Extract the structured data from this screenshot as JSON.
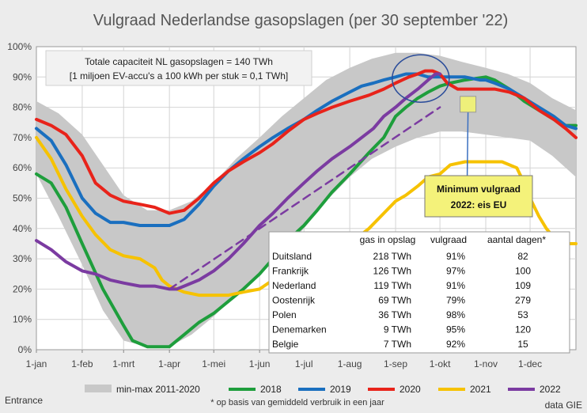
{
  "chart_data": {
    "type": "line",
    "title": "Vulgraad Nederlandse gasopslagen (per 30 september '22)",
    "x_tick_labels": [
      "1-jan",
      "1-feb",
      "1-mrt",
      "1-apr",
      "1-mei",
      "1-jun",
      "1-jul",
      "1-aug",
      "1-sep",
      "1-okt",
      "1-nov",
      "1-dec"
    ],
    "x_tick_days": [
      0,
      31,
      59,
      90,
      120,
      151,
      181,
      212,
      243,
      273,
      304,
      334
    ],
    "x_range_days": [
      0,
      365
    ],
    "y_tick_labels": [
      "0%",
      "10%",
      "20%",
      "30%",
      "40%",
      "50%",
      "60%",
      "70%",
      "80%",
      "90%",
      "100%"
    ],
    "ylim": [
      0,
      100
    ],
    "grid": true,
    "legend_position": "bottom",
    "band": {
      "name": "min-max 2011-2020",
      "color": "#c8c8c8",
      "x": [
        0,
        15,
        31,
        45,
        59,
        75,
        90,
        105,
        120,
        135,
        151,
        166,
        181,
        196,
        212,
        227,
        243,
        258,
        273,
        288,
        304,
        319,
        334,
        349,
        365
      ],
      "min": [
        58,
        44,
        28,
        13,
        3,
        1,
        1,
        5,
        11,
        18,
        25,
        32,
        40,
        49,
        57,
        63,
        67,
        70,
        72,
        72,
        71,
        70,
        69,
        64,
        57
      ],
      "max": [
        82,
        78,
        71,
        61,
        51,
        46,
        46,
        49,
        55,
        63,
        70,
        77,
        83,
        89,
        93,
        96,
        98,
        98,
        97,
        95,
        93,
        91,
        88,
        83,
        79
      ]
    },
    "series": [
      {
        "name": "2018",
        "color": "#1e9e3c",
        "x": [
          0,
          10,
          20,
          31,
          45,
          59,
          65,
          75,
          90,
          100,
          110,
          120,
          130,
          140,
          151,
          160,
          170,
          181,
          190,
          200,
          212,
          225,
          235,
          243,
          250,
          258,
          265,
          273,
          280,
          290,
          304,
          310,
          320,
          330,
          340,
          350,
          358,
          365
        ],
        "y": [
          58,
          55,
          47,
          35,
          20,
          8,
          3,
          1,
          1,
          5,
          9,
          12,
          16,
          20,
          25,
          30,
          36,
          41,
          46,
          52,
          58,
          65,
          70,
          77,
          80,
          83,
          85,
          87,
          88,
          89,
          90,
          89,
          86,
          82,
          79,
          76,
          74,
          74
        ]
      },
      {
        "name": "2019",
        "color": "#1a6fbf",
        "x": [
          0,
          10,
          20,
          31,
          40,
          50,
          59,
          70,
          80,
          90,
          100,
          110,
          120,
          130,
          140,
          151,
          160,
          170,
          181,
          190,
          200,
          212,
          220,
          228,
          235,
          243,
          250,
          258,
          265,
          270,
          280,
          290,
          300,
          304,
          310,
          320,
          330,
          340,
          350,
          358,
          365
        ],
        "y": [
          73,
          69,
          61,
          50,
          45,
          42,
          42,
          41,
          41,
          41,
          43,
          48,
          54,
          59,
          63,
          67,
          70,
          73,
          76,
          79,
          82,
          85,
          87,
          88,
          89,
          90,
          91,
          91,
          90,
          90,
          90,
          90,
          89,
          89,
          88,
          86,
          83,
          80,
          77,
          74,
          73
        ]
      },
      {
        "name": "2020",
        "color": "#e8231a",
        "x": [
          0,
          10,
          20,
          31,
          40,
          50,
          59,
          70,
          80,
          90,
          100,
          110,
          120,
          130,
          140,
          151,
          160,
          170,
          181,
          190,
          200,
          212,
          225,
          235,
          243,
          252,
          258,
          263,
          268,
          273,
          278,
          285,
          295,
          304,
          310,
          320,
          330,
          340,
          350,
          358,
          365
        ],
        "y": [
          76,
          74,
          71,
          64,
          55,
          51,
          49,
          48,
          47,
          45,
          46,
          50,
          55,
          59,
          62,
          65,
          68,
          72,
          76,
          78,
          80,
          82,
          84,
          86,
          88,
          90,
          91,
          92,
          92,
          91,
          88,
          86,
          86,
          86,
          86,
          85,
          83,
          79,
          76,
          73,
          70
        ]
      },
      {
        "name": "2021",
        "color": "#f6c200",
        "x": [
          0,
          10,
          20,
          31,
          40,
          50,
          59,
          70,
          80,
          85,
          90,
          100,
          110,
          120,
          130,
          140,
          151,
          160,
          170,
          181,
          190,
          200,
          212,
          225,
          235,
          243,
          250,
          258,
          265,
          273,
          280,
          290,
          304,
          315,
          325,
          330,
          335,
          340,
          345,
          350,
          355,
          360,
          365
        ],
        "y": [
          70,
          63,
          53,
          44,
          38,
          33,
          31,
          30,
          27,
          23,
          21,
          19,
          18,
          18,
          18,
          19,
          20,
          23,
          25,
          27,
          30,
          32,
          35,
          40,
          45,
          49,
          51,
          54,
          57,
          58,
          61,
          62,
          62,
          62,
          60,
          55,
          49,
          44,
          40,
          37,
          36,
          35,
          35
        ]
      },
      {
        "name": "2022",
        "color": "#7b3ba1",
        "x": [
          0,
          10,
          20,
          31,
          40,
          50,
          59,
          70,
          80,
          90,
          95,
          100,
          110,
          120,
          130,
          140,
          151,
          160,
          170,
          181,
          190,
          200,
          212,
          220,
          228,
          235,
          243,
          250,
          258,
          265,
          270,
          273
        ],
        "y": [
          36,
          33,
          29,
          26,
          25,
          23,
          22,
          21,
          21,
          20,
          20,
          21,
          23,
          26,
          30,
          35,
          41,
          45,
          50,
          55,
          59,
          63,
          67,
          70,
          73,
          77,
          80,
          83,
          86,
          89,
          91,
          91
        ]
      },
      {
        "name": "2022 (trend)",
        "color": "#7b3ba1",
        "dashed": true,
        "x": [
          90,
          273
        ],
        "y": [
          20,
          80
        ]
      }
    ],
    "legend": [
      "min-max 2011-2020",
      "2018",
      "2019",
      "2020",
      "2021",
      "2022"
    ],
    "highlight": {
      "x_day": 260,
      "y": 89.5
    },
    "minimum_marker": {
      "x_day": 292,
      "y": 81
    }
  },
  "info_box": {
    "line1": "Totale capaciteit NL gasopslagen = 140 TWh",
    "line2": "[1 miljoen EV-accu's a 100 kWh per stuk = 0,1 TWh]"
  },
  "callout": {
    "line1": "Minimum vulgraad",
    "line2": "2022: eis EU"
  },
  "table": {
    "headers": [
      "",
      "gas in opslag",
      "vulgraad",
      "aantal dagen*"
    ],
    "rows": [
      [
        "Duitsland",
        "218 TWh",
        "91%",
        "82"
      ],
      [
        "Frankrijk",
        "126 TWh",
        "97%",
        "100"
      ],
      [
        "Nederland",
        "119 TWh",
        "91%",
        "109"
      ],
      [
        "Oostenrijk",
        "69 TWh",
        "79%",
        "279"
      ],
      [
        "Polen",
        "36 TWh",
        "98%",
        "53"
      ],
      [
        "Denemarken",
        "9 TWh",
        "95%",
        "120"
      ],
      [
        "Belgie",
        "7 TWh",
        "92%",
        "15"
      ]
    ]
  },
  "footer": {
    "source_left": "Entrance",
    "note": "* op basis van gemiddeld verbruik in een jaar",
    "source_right": "data GIE"
  }
}
